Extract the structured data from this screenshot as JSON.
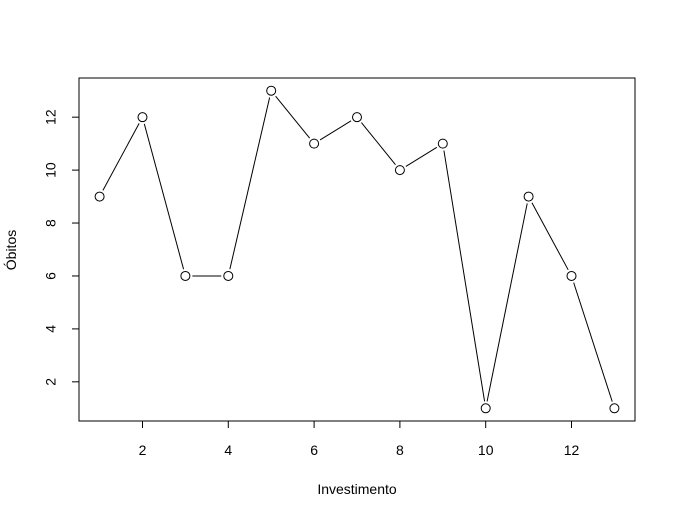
{
  "chart_data": {
    "type": "line",
    "title": "",
    "xlabel": "Investimento",
    "ylabel": "Óbitos",
    "x": [
      1,
      2,
      3,
      4,
      5,
      6,
      7,
      8,
      9,
      10,
      11,
      12,
      13
    ],
    "series": [
      {
        "values": [
          9,
          12,
          6,
          6,
          13,
          11,
          12,
          10,
          11,
          1,
          9,
          6,
          1
        ]
      }
    ],
    "xlim": [
      0.52,
      13.48
    ],
    "ylim": [
      0.52,
      13.48
    ],
    "xticks": [
      2,
      4,
      6,
      8,
      10,
      12
    ],
    "yticks": [
      2,
      4,
      6,
      8,
      10,
      12
    ],
    "grid": false,
    "legend": "none",
    "colors": {
      "line": "#000000",
      "marker_fill": "#ffffff",
      "marker_stroke": "#000000"
    }
  }
}
